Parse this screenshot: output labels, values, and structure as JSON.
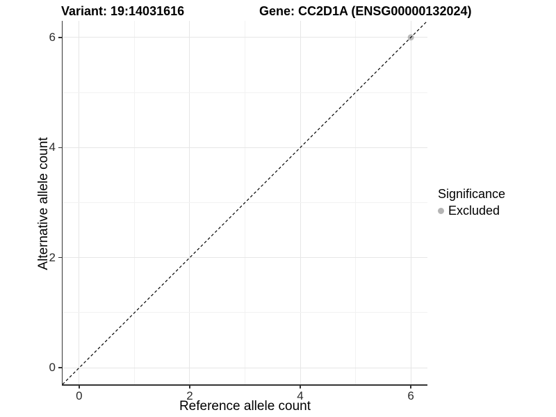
{
  "titles": {
    "variant": "Variant: 19:14031616",
    "gene": "Gene: CC2D1A (ENSG00000132024)"
  },
  "axes": {
    "x": {
      "label": "Reference allele count",
      "ticks": [
        "0",
        "2",
        "4",
        "6"
      ]
    },
    "y": {
      "label": "Alternative allele count",
      "ticks": [
        "0",
        "2",
        "4",
        "6"
      ]
    }
  },
  "legend": {
    "title": "Significance",
    "items": [
      {
        "label": "Excluded",
        "color": "#b5b5b5"
      }
    ]
  },
  "colors": {
    "background": "#ffffff",
    "axis_line": "#333333",
    "grid_major": "#e6e6e6",
    "grid_minor": "#f2f2f2",
    "reference_line": "#000000",
    "point_excluded": "#b9b9b9"
  },
  "chart_data": {
    "type": "scatter",
    "title": "Variant: 19:14031616    Gene: CC2D1A (ENSG00000132024)",
    "xlabel": "Reference allele count",
    "ylabel": "Alternative allele count",
    "xlim": [
      -0.3,
      6.3
    ],
    "ylim": [
      -0.3,
      6.3
    ],
    "x_ticks": [
      0,
      2,
      4,
      6
    ],
    "y_ticks": [
      0,
      2,
      4,
      6
    ],
    "grid": "on",
    "legend_position": "right",
    "legend_title": "Significance",
    "series": [
      {
        "name": "Excluded",
        "color": "#b9b9b9",
        "points": [
          {
            "x": 6,
            "y": 6
          }
        ]
      }
    ],
    "reference_line": {
      "kind": "identity",
      "slope": 1,
      "intercept": 0,
      "style": "dashed",
      "color": "#000000"
    }
  }
}
